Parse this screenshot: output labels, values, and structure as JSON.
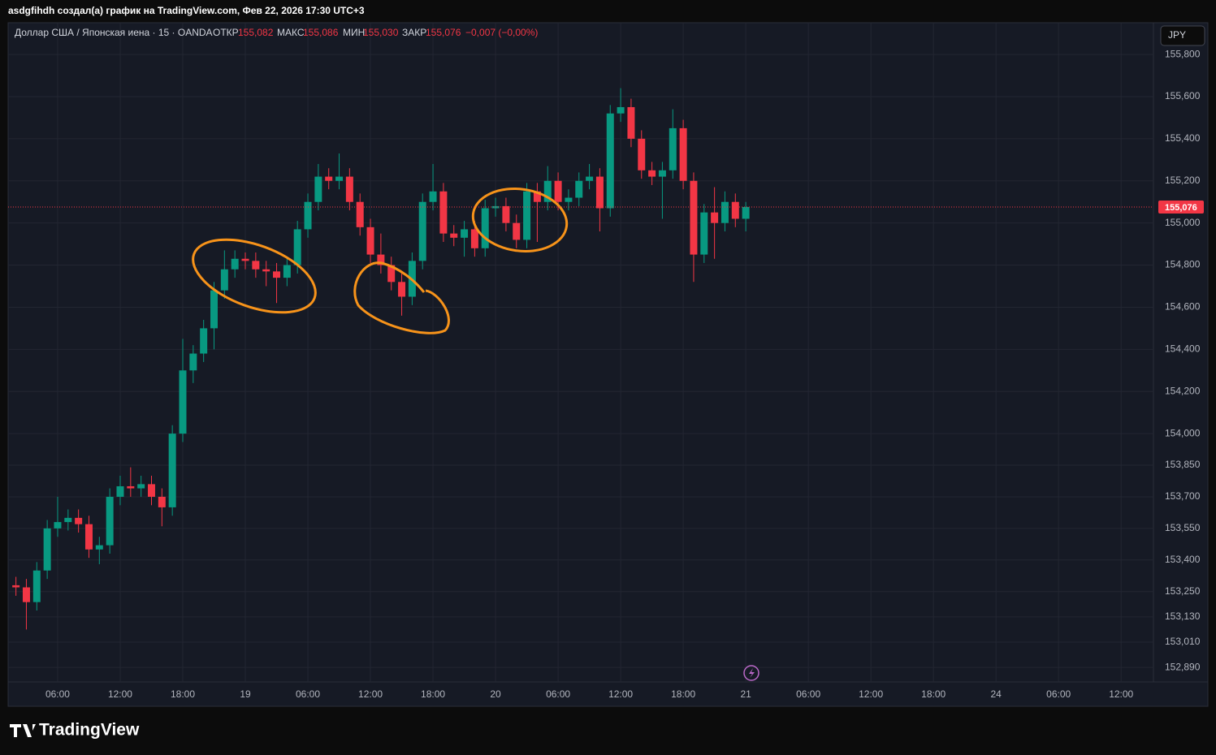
{
  "header": {
    "author_line": "asdgfihdh создал(а) график на TradingView.com, Фев 22, 2026 17:30 UTC+3",
    "symbol": "Доллар США / Японская иена · 15 · OANDA",
    "open_label": "ОТКР",
    "open_value": "155,082",
    "high_label": "МАКС",
    "high_value": "155,086",
    "low_label": "МИН",
    "low_value": "155,030",
    "close_label": "ЗАКР",
    "close_value": "155,076",
    "change": "−0,007 (−0,00%)"
  },
  "currency_button": "JPY",
  "footer": {
    "logo": "TradingView"
  },
  "chart_data": {
    "type": "candlestick",
    "x": [
      2,
      3,
      4,
      5,
      6,
      7,
      8,
      9,
      10,
      11,
      12,
      13,
      14,
      15,
      16,
      17,
      18,
      19,
      20,
      21,
      22,
      23,
      24,
      25,
      26,
      27,
      28,
      29,
      30,
      31,
      32,
      33,
      34,
      35,
      36,
      37,
      38,
      39,
      40,
      41,
      42,
      43,
      44,
      45,
      46,
      47,
      48,
      49,
      50,
      51,
      52,
      53,
      54,
      55,
      56,
      57,
      58,
      59,
      60,
      61,
      62,
      63,
      64,
      65,
      66,
      67,
      68,
      69,
      70,
      71,
      72
    ],
    "open": [
      153.28,
      153.27,
      153.2,
      153.35,
      153.55,
      153.58,
      153.6,
      153.57,
      153.45,
      153.47,
      153.7,
      153.75,
      153.74,
      153.76,
      153.7,
      153.65,
      154.0,
      154.3,
      154.38,
      154.5,
      154.68,
      154.78,
      154.83,
      154.82,
      154.78,
      154.77,
      154.74,
      154.8,
      154.97,
      155.1,
      155.22,
      155.2,
      155.22,
      155.1,
      154.98,
      154.85,
      154.8,
      154.72,
      154.65,
      154.82,
      155.1,
      155.15,
      154.95,
      154.93,
      154.97,
      154.88,
      155.07,
      155.08,
      155.0,
      154.92,
      155.15,
      155.1,
      155.2,
      155.1,
      155.12,
      155.2,
      155.22,
      155.07,
      155.52,
      155.55,
      155.4,
      155.25,
      155.22,
      155.25,
      155.45,
      155.2,
      154.85,
      155.05,
      155.0,
      155.1,
      155.02
    ],
    "high": [
      153.32,
      153.31,
      153.39,
      153.59,
      153.7,
      153.64,
      153.64,
      153.61,
      153.51,
      153.74,
      153.8,
      153.84,
      153.8,
      153.8,
      153.74,
      154.04,
      154.45,
      154.42,
      154.54,
      154.72,
      154.87,
      154.87,
      154.86,
      154.86,
      154.82,
      154.81,
      154.84,
      155.01,
      155.14,
      155.28,
      155.26,
      155.33,
      155.26,
      155.14,
      155.02,
      154.95,
      154.84,
      154.76,
      154.86,
      155.14,
      155.28,
      155.19,
      154.99,
      155.01,
      155.01,
      155.11,
      155.12,
      155.12,
      155.04,
      155.19,
      155.19,
      155.27,
      155.24,
      155.16,
      155.24,
      155.28,
      155.26,
      155.56,
      155.64,
      155.59,
      155.44,
      155.29,
      155.29,
      155.54,
      155.49,
      155.24,
      155.09,
      155.17,
      155.15,
      155.14,
      155.1
    ],
    "low": [
      153.23,
      153.07,
      153.16,
      153.31,
      153.51,
      153.54,
      153.53,
      153.41,
      153.38,
      153.43,
      153.66,
      153.7,
      153.7,
      153.66,
      153.56,
      153.61,
      153.96,
      154.24,
      154.34,
      154.4,
      154.64,
      154.74,
      154.78,
      154.74,
      154.7,
      154.62,
      154.7,
      154.76,
      154.93,
      155.06,
      155.16,
      155.16,
      155.06,
      154.94,
      154.81,
      154.76,
      154.68,
      154.56,
      154.61,
      154.78,
      155.06,
      154.91,
      154.89,
      154.84,
      154.84,
      154.84,
      155.03,
      154.96,
      154.88,
      154.88,
      154.91,
      155.06,
      155.06,
      155.06,
      155.08,
      155.16,
      154.96,
      155.03,
      155.48,
      155.36,
      155.21,
      155.18,
      155.02,
      155.21,
      155.16,
      154.72,
      154.81,
      154.83,
      154.96,
      154.98,
      154.96
    ],
    "close": [
      153.27,
      153.2,
      153.35,
      153.55,
      153.58,
      153.6,
      153.57,
      153.45,
      153.47,
      153.7,
      153.75,
      153.74,
      153.76,
      153.7,
      153.65,
      154.0,
      154.3,
      154.38,
      154.5,
      154.68,
      154.78,
      154.83,
      154.82,
      154.78,
      154.77,
      154.74,
      154.8,
      154.97,
      155.1,
      155.22,
      155.2,
      155.22,
      155.1,
      154.98,
      154.85,
      154.8,
      154.72,
      154.65,
      154.82,
      155.1,
      155.15,
      154.95,
      154.93,
      154.97,
      154.88,
      155.07,
      155.08,
      155.0,
      154.92,
      155.15,
      155.1,
      155.2,
      155.1,
      155.12,
      155.2,
      155.22,
      155.07,
      155.52,
      155.55,
      155.4,
      155.25,
      155.22,
      155.25,
      155.45,
      155.2,
      154.85,
      155.05,
      155.0,
      155.1,
      155.02,
      155.076
    ],
    "up_color": "#089981",
    "down_color": "#f23645",
    "last_price": {
      "value": 155.076,
      "label": "155,076"
    },
    "grid": true,
    "xlim": [
      1.25,
      111.1
    ],
    "xticks": [
      {
        "value": 6,
        "label": "06:00"
      },
      {
        "value": 12,
        "label": "12:00"
      },
      {
        "value": 18,
        "label": "18:00"
      },
      {
        "value": 24,
        "label": "19"
      },
      {
        "value": 30,
        "label": "06:00"
      },
      {
        "value": 36,
        "label": "12:00"
      },
      {
        "value": 42,
        "label": "18:00"
      },
      {
        "value": 48,
        "label": "20"
      },
      {
        "value": 54,
        "label": "06:00"
      },
      {
        "value": 60,
        "label": "12:00"
      },
      {
        "value": 66,
        "label": "18:00"
      },
      {
        "value": 72,
        "label": "21"
      },
      {
        "value": 78,
        "label": "06:00"
      },
      {
        "value": 84,
        "label": "12:00"
      },
      {
        "value": 90,
        "label": "18:00"
      },
      {
        "value": 96,
        "label": "24"
      },
      {
        "value": 102,
        "label": "06:00"
      },
      {
        "value": 108,
        "label": "12:00"
      }
    ],
    "ylim": [
      152.821,
      155.943
    ],
    "yticks": [
      {
        "value": 155.8,
        "label": "155,800"
      },
      {
        "value": 155.6,
        "label": "155,600"
      },
      {
        "value": 155.4,
        "label": "155,400"
      },
      {
        "value": 155.2,
        "label": "155,200"
      },
      {
        "value": 155.0,
        "label": "155,000"
      },
      {
        "value": 154.8,
        "label": "154,800"
      },
      {
        "value": 154.6,
        "label": "154,600"
      },
      {
        "value": 154.4,
        "label": "154,400"
      },
      {
        "value": 154.2,
        "label": "154,200"
      },
      {
        "value": 154.0,
        "label": "154,000"
      },
      {
        "value": 153.85,
        "label": "153,850"
      },
      {
        "value": 153.7,
        "label": "153,700"
      },
      {
        "value": 153.55,
        "label": "153,550"
      },
      {
        "value": 153.4,
        "label": "153,400"
      },
      {
        "value": 153.25,
        "label": "153,250"
      },
      {
        "value": 153.13,
        "label": "153,130"
      },
      {
        "value": 153.01,
        "label": "153,010"
      },
      {
        "value": 152.89,
        "label": "152,890"
      }
    ]
  }
}
